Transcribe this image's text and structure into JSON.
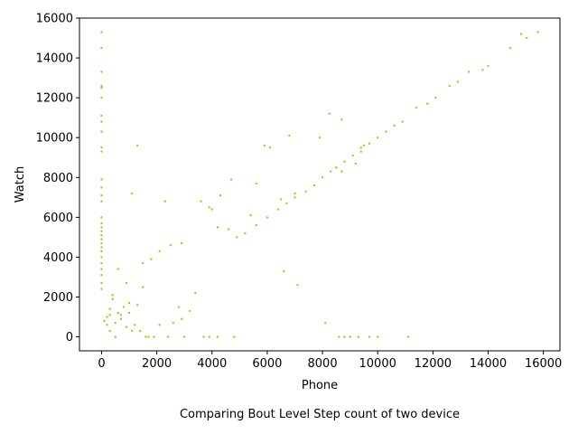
{
  "chart_data": {
    "type": "scatter",
    "title": "",
    "caption": "Comparing Bout Level Step count of two device",
    "xlabel": "Phone",
    "ylabel": "Watch",
    "xlim": [
      -800,
      16600
    ],
    "ylim": [
      -700,
      16000
    ],
    "xticks": [
      0,
      2000,
      4000,
      6000,
      8000,
      10000,
      12000,
      14000,
      16000
    ],
    "yticks": [
      0,
      2000,
      4000,
      6000,
      8000,
      10000,
      12000,
      14000,
      16000
    ],
    "grid": false,
    "legend": "none",
    "point_color": "#bcbd22",
    "series": [
      {
        "x": [
          5200,
          5600,
          6000,
          6400,
          6700,
          7000,
          7400,
          7700,
          8000,
          8300,
          8500,
          8800,
          9100,
          9400,
          9700,
          10000,
          10300,
          10600,
          10900,
          11400,
          11800,
          12100,
          12600,
          12900,
          13300,
          13800,
          14000,
          14800,
          15200,
          15400,
          15800,
          8250,
          9400,
          9500,
          6800,
          7900,
          5900,
          6100,
          8700,
          4700,
          8500,
          8700,
          6500,
          7000,
          4300,
          5400,
          5600,
          7100,
          8100,
          6600,
          4000,
          4900,
          9200,
          3900,
          3600,
          4200,
          4600,
          1300,
          1100,
          2300,
          2500,
          2100,
          1800,
          1500,
          900,
          600,
          2800,
          3200,
          2900,
          3400,
          8600,
          3700,
          3900,
          8800,
          9000,
          9300,
          9700,
          10000,
          11100,
          4800,
          4200,
          3000,
          2400,
          1900,
          1600,
          2100,
          2600,
          2900,
          1300,
          1500,
          1000,
          700,
          300,
          500,
          1200,
          800,
          400,
          200,
          300,
          600,
          100,
          900,
          1100,
          500,
          1400,
          700,
          1700,
          1000,
          400,
          300,
          200,
          100
        ],
        "y": [
          5200,
          5600,
          6000,
          6400,
          6700,
          7000,
          7300,
          7600,
          8000,
          8300,
          8500,
          8800,
          9100,
          9300,
          9700,
          10000,
          10300,
          10600,
          10800,
          11500,
          11700,
          12000,
          12600,
          12800,
          13300,
          13400,
          13600,
          14500,
          15200,
          15000,
          15300,
          11200,
          9500,
          9600,
          10100,
          10000,
          9600,
          9500,
          10900,
          7900,
          8500,
          8300,
          6900,
          7200,
          7100,
          6100,
          7700,
          2600,
          700,
          3300,
          6400,
          5000,
          8700,
          6500,
          6800,
          5500,
          5400,
          9600,
          7200,
          6800,
          4600,
          4300,
          3900,
          3700,
          2700,
          3400,
          1500,
          1300,
          4700,
          2200,
          0,
          0,
          0,
          0,
          0,
          0,
          0,
          0,
          0,
          0,
          0,
          0,
          0,
          0,
          0,
          600,
          700,
          900,
          1600,
          2500,
          1200,
          900,
          1100,
          700,
          600,
          1500,
          1900,
          600,
          300,
          1200,
          800,
          500,
          300,
          0,
          300,
          1100,
          0,
          1700,
          2100,
          1400,
          1000,
          800
        ]
      },
      {
        "x": [
          0,
          0,
          0,
          0,
          0,
          0,
          0,
          0,
          0,
          0,
          0,
          0,
          0,
          0,
          0,
          0,
          0,
          0,
          0,
          0,
          0,
          0,
          0,
          0,
          0,
          0,
          0,
          0,
          0,
          0
        ],
        "y": [
          15300,
          14500,
          13300,
          12600,
          12500,
          12000,
          11100,
          10800,
          10300,
          9500,
          9300,
          7900,
          7500,
          7100,
          6800,
          6000,
          5700,
          5500,
          5300,
          5100,
          4900,
          4700,
          4500,
          4300,
          4000,
          3700,
          3400,
          3100,
          2700,
          2400
        ]
      }
    ]
  }
}
